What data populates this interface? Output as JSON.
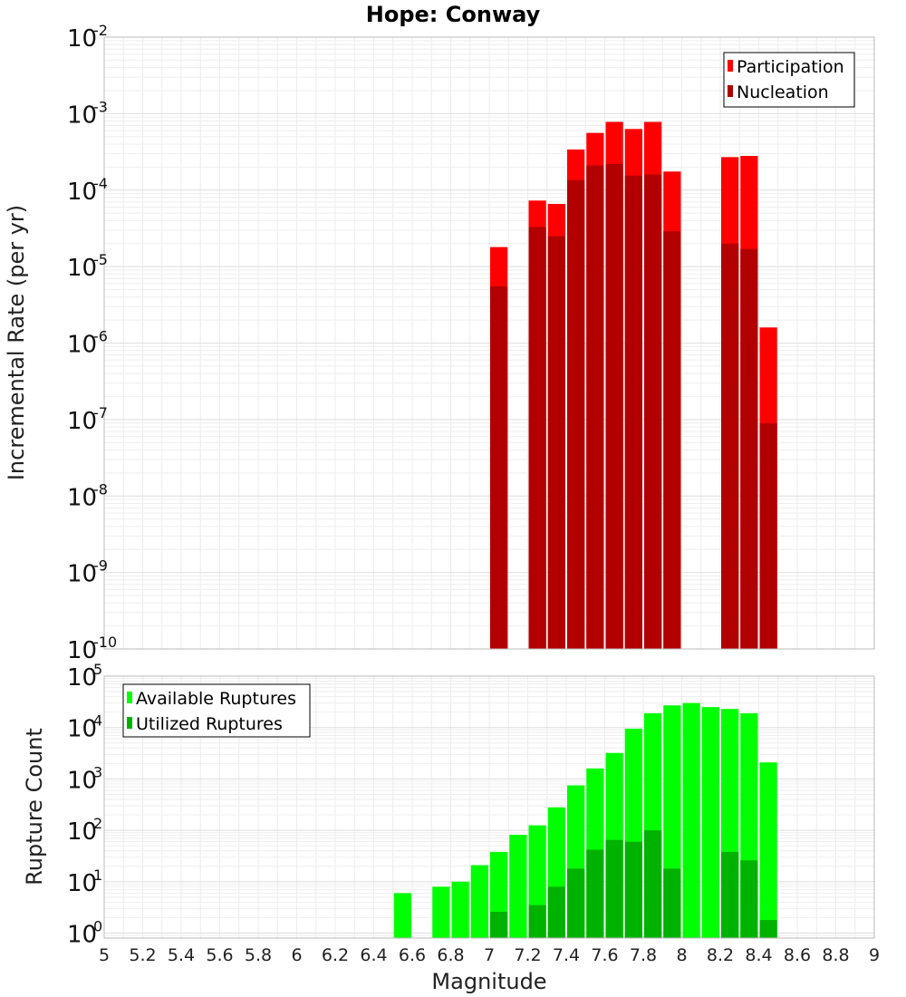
{
  "chart_data": [
    {
      "type": "bar",
      "title": "Hope: Conway",
      "xlabel": "",
      "ylabel": "Incremental Rate (per yr)",
      "xlim": [
        5,
        9
      ],
      "ylim": [
        1e-10,
        0.01
      ],
      "yscale": "log",
      "grid": true,
      "legend_position": "top-right",
      "bar_width": 0.1,
      "ytick_exponents": [
        -2,
        -3,
        -4,
        -5,
        -6,
        -7,
        -8,
        -9,
        -10
      ],
      "series": [
        {
          "name": "Participation",
          "color": "#ff0000",
          "x": [
            7.05,
            7.25,
            7.35,
            7.45,
            7.55,
            7.65,
            7.75,
            7.85,
            7.95,
            8.25,
            8.35,
            8.45
          ],
          "values": [
            1.8e-05,
            7.3e-05,
            6.6e-05,
            0.00034,
            0.00056,
            0.00078,
            0.00063,
            0.00078,
            0.000175,
            0.00027,
            0.00028,
            1.6e-06
          ]
        },
        {
          "name": "Nucleation",
          "color": "#b20000",
          "x": [
            7.05,
            7.25,
            7.35,
            7.45,
            7.55,
            7.65,
            7.75,
            7.85,
            7.95,
            8.25,
            8.35,
            8.45
          ],
          "values": [
            5.5e-06,
            3.3e-05,
            2.5e-05,
            0.000135,
            0.00021,
            0.00022,
            0.000155,
            0.00016,
            2.9e-05,
            2e-05,
            1.7e-05,
            9e-08
          ]
        }
      ]
    },
    {
      "type": "bar",
      "title": "",
      "xlabel": "Magnitude",
      "ylabel": "Rupture Count",
      "xlim": [
        5,
        9
      ],
      "ylim": [
        0.8,
        100000.0
      ],
      "yscale": "log",
      "grid": true,
      "legend_position": "top-left",
      "bar_width": 0.1,
      "xtick_labels": [
        "5",
        "5.2",
        "5.4",
        "5.6",
        "5.8",
        "6",
        "6.2",
        "6.4",
        "6.6",
        "6.8",
        "7",
        "7.2",
        "7.4",
        "7.6",
        "7.8",
        "8",
        "8.2",
        "8.4",
        "8.6",
        "8.8",
        "9"
      ],
      "ytick_exponents": [
        5,
        4,
        3,
        2,
        1,
        0
      ],
      "series": [
        {
          "name": "Available Ruptures",
          "color": "#00ff00",
          "x": [
            6.55,
            6.75,
            6.85,
            6.95,
            7.05,
            7.15,
            7.25,
            7.35,
            7.45,
            7.55,
            7.65,
            7.75,
            7.85,
            7.95,
            8.05,
            8.15,
            8.25,
            8.35,
            8.45
          ],
          "values": [
            6,
            8,
            10,
            21,
            38,
            82,
            125,
            280,
            750,
            1600,
            3200,
            9500,
            19000,
            27000,
            30000,
            25000,
            23000,
            19000,
            2100
          ]
        },
        {
          "name": "Utilized Ruptures",
          "color": "#00b200",
          "x": [
            7.05,
            7.25,
            7.35,
            7.45,
            7.55,
            7.65,
            7.75,
            7.85,
            7.95,
            8.25,
            8.35,
            8.45
          ],
          "values": [
            2.6,
            3.5,
            8,
            18,
            42,
            65,
            60,
            100,
            18,
            38,
            26,
            1.8
          ]
        }
      ]
    }
  ]
}
